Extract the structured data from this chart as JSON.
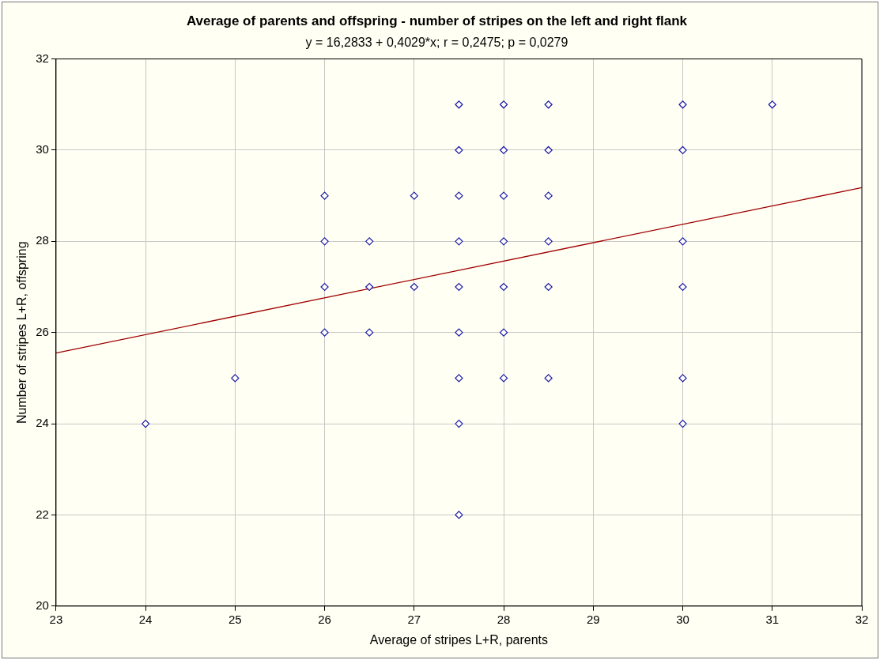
{
  "chart_data": {
    "type": "scatter",
    "title": "Average of parents and offspring - number of stripes on the left and right flank",
    "subtitle": "y = 16,2833 + 0,4029*x; r = 0,2475; p = 0,0279",
    "xlabel": "Average of stripes L+R, parents",
    "ylabel": "Number of stripes L+R, offspring",
    "xlim": [
      23,
      32
    ],
    "xticks": [
      23,
      24,
      25,
      26,
      27,
      28,
      29,
      30,
      31,
      32
    ],
    "ylim": [
      20,
      32
    ],
    "yticks": [
      20,
      22,
      24,
      26,
      28,
      30,
      32
    ],
    "grid": true,
    "series": [
      {
        "marker": "diamond",
        "color": "#1a1aa0",
        "x": [
          24,
          25,
          26,
          26,
          26,
          26,
          26.5,
          26.5,
          26.5,
          27,
          27,
          27.5,
          27.5,
          27.5,
          27.5,
          27.5,
          27.5,
          27.5,
          27.5,
          27.5,
          28,
          28,
          28,
          28,
          28,
          28,
          28,
          28.5,
          28.5,
          28.5,
          28.5,
          28.5,
          28.5,
          30,
          30,
          30,
          30,
          30,
          30,
          31
        ],
        "values": [
          24,
          25,
          29,
          28,
          27,
          26,
          28,
          27,
          26,
          29,
          27,
          31,
          30,
          29,
          28,
          27,
          26,
          25,
          24,
          22,
          31,
          30,
          29,
          28,
          27,
          26,
          25,
          31,
          30,
          29,
          28,
          27,
          25,
          31,
          30,
          28,
          27,
          25,
          24,
          31
        ]
      },
      {
        "type": "line",
        "color": "#a00000",
        "line_style": "solid",
        "x": [
          23,
          32
        ],
        "values": [
          25.55,
          29.18
        ]
      }
    ]
  }
}
